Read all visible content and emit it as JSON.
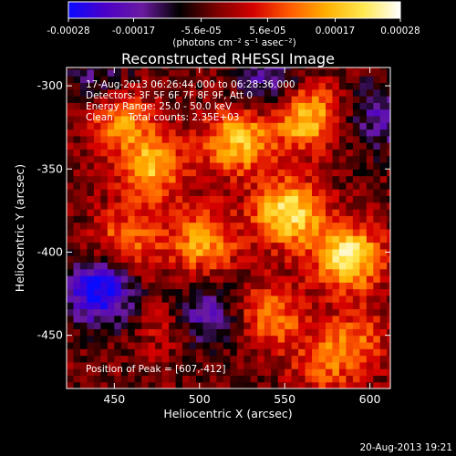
{
  "colorbar": {
    "tick_labels": [
      "-0.00028",
      "-0.00017",
      "-5.6e-05",
      "5.6e-05",
      "0.00017",
      "0.00028"
    ],
    "tick_values": [
      -0.00028,
      -0.00017,
      -5.6e-05,
      5.6e-05,
      0.00017,
      0.00028
    ],
    "range": [
      -0.00028,
      0.00028
    ],
    "unit_label": "(photons cm⁻² s⁻¹ asec⁻²)",
    "colors": [
      "#0a0aff",
      "#4b00c8",
      "#6a1aa0",
      "#000000",
      "#7a0000",
      "#d40000",
      "#ff5a00",
      "#ffb000",
      "#ffe850",
      "#ffffff"
    ]
  },
  "chart_data": {
    "type": "heatmap",
    "title": "Reconstructed RHESSI Image",
    "xlabel": "Heliocentric X (arcsec)",
    "ylabel": "Heliocentric Y (arcsec)",
    "xlim": [
      422,
      612
    ],
    "ylim": [
      -482,
      -289
    ],
    "x_ticks": [
      450,
      500,
      550,
      600
    ],
    "y_ticks": [
      -300,
      -350,
      -400,
      -450
    ],
    "x_tick_labels": [
      "450",
      "500",
      "550",
      "600"
    ],
    "y_tick_labels": [
      "-300",
      "-350",
      "-400",
      "-450"
    ],
    "annotations": [
      "17-Aug-2013 06:26:44.000 to 06:28:36.000",
      "Detectors: 3F 5F 6F 7F 8F 9F, Att 0",
      "Energy Range: 25.0 - 50.0 keV",
      "Clean     Total counts: 2.35E+03",
      "Position of Peak = [607,-412]"
    ],
    "peak": [
      607,
      -412
    ],
    "bright_regions": [
      {
        "x": 585,
        "y": -405,
        "level": 1.0
      },
      {
        "x": 550,
        "y": -378,
        "level": 0.95
      },
      {
        "x": 560,
        "y": -320,
        "level": 0.85
      },
      {
        "x": 520,
        "y": -335,
        "level": 0.8
      },
      {
        "x": 470,
        "y": -350,
        "level": 0.75
      },
      {
        "x": 500,
        "y": -395,
        "level": 0.7
      },
      {
        "x": 455,
        "y": -395,
        "level": 0.55
      },
      {
        "x": 450,
        "y": -320,
        "level": 0.65
      },
      {
        "x": 540,
        "y": -440,
        "level": 0.55
      },
      {
        "x": 590,
        "y": -455,
        "level": 0.45
      },
      {
        "x": 570,
        "y": -470,
        "level": 0.4
      },
      {
        "x": 480,
        "y": -445,
        "level": 0.3
      }
    ],
    "dark_regions": [
      {
        "x": 440,
        "y": -425,
        "level": -0.9
      },
      {
        "x": 500,
        "y": -440,
        "level": -0.55
      },
      {
        "x": 540,
        "y": -300,
        "level": -0.5
      },
      {
        "x": 605,
        "y": -320,
        "level": -0.45
      },
      {
        "x": 440,
        "y": -300,
        "level": -0.4
      }
    ]
  },
  "footer": {
    "timestamp": "20-Aug-2013 19:21"
  }
}
